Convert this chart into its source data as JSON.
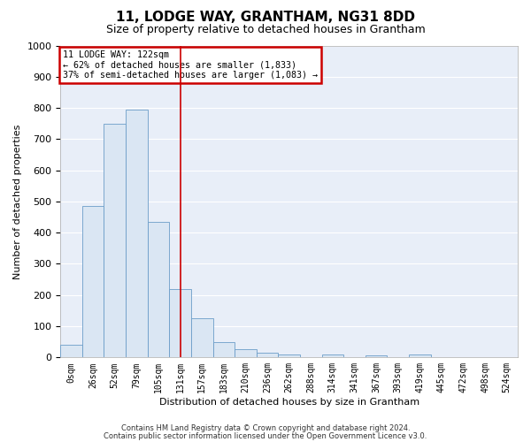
{
  "title": "11, LODGE WAY, GRANTHAM, NG31 8DD",
  "subtitle": "Size of property relative to detached houses in Grantham",
  "xlabel": "Distribution of detached houses by size in Grantham",
  "ylabel": "Number of detached properties",
  "bar_labels": [
    "0sqm",
    "26sqm",
    "52sqm",
    "79sqm",
    "105sqm",
    "131sqm",
    "157sqm",
    "183sqm",
    "210sqm",
    "236sqm",
    "262sqm",
    "288sqm",
    "314sqm",
    "341sqm",
    "367sqm",
    "393sqm",
    "419sqm",
    "445sqm",
    "472sqm",
    "498sqm",
    "524sqm"
  ],
  "bar_values": [
    40,
    485,
    750,
    795,
    435,
    220,
    125,
    50,
    27,
    14,
    10,
    0,
    10,
    0,
    8,
    0,
    10,
    0,
    0,
    0,
    0
  ],
  "bar_color": "#dae6f3",
  "bar_edge_color": "#6b9dc8",
  "bar_width": 1.0,
  "vline_x": 5.0,
  "vline_color": "#cc0000",
  "ylim": [
    0,
    1000
  ],
  "yticks": [
    0,
    100,
    200,
    300,
    400,
    500,
    600,
    700,
    800,
    900,
    1000
  ],
  "annotation_text": "11 LODGE WAY: 122sqm\n← 62% of detached houses are smaller (1,833)\n37% of semi-detached houses are larger (1,083) →",
  "annotation_box_facecolor": "#ffffff",
  "annotation_box_edgecolor": "#cc0000",
  "footnote1": "Contains HM Land Registry data © Crown copyright and database right 2024.",
  "footnote2": "Contains public sector information licensed under the Open Government Licence v3.0.",
  "fig_facecolor": "#ffffff",
  "axes_facecolor": "#e8eef8",
  "grid_color": "#ffffff",
  "title_fontsize": 11,
  "subtitle_fontsize": 9,
  "tick_fontsize": 7,
  "ylabel_fontsize": 8,
  "xlabel_fontsize": 8,
  "footnote_fontsize": 6
}
